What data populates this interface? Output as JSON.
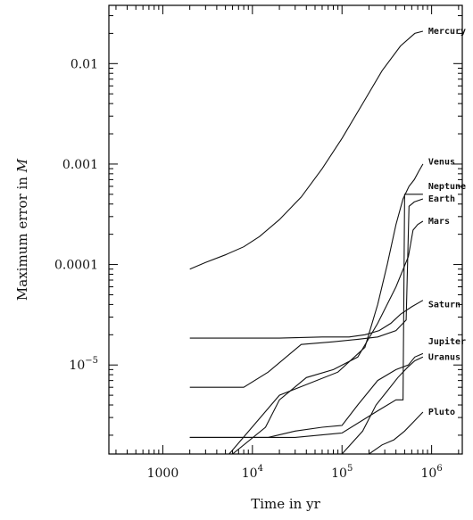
{
  "chart_data": {
    "type": "line",
    "xlabel_prefix": "Time in yr",
    "ylabel_prefix": "Maximum error in ",
    "ylabel_var": "M",
    "xscale": "log",
    "yscale": "log",
    "xlim": [
      250,
      2200000
    ],
    "ylim": [
      1.3e-06,
      0.038
    ],
    "grid": false,
    "x_ticks": [
      {
        "value": 1000,
        "label": "1000"
      },
      {
        "value": 10000,
        "mant": "10",
        "exp": "4"
      },
      {
        "value": 100000,
        "mant": "10",
        "exp": "5"
      },
      {
        "value": 1000000,
        "mant": "10",
        "exp": "6"
      }
    ],
    "y_ticks": [
      {
        "value": 0.01,
        "label": "0.01"
      },
      {
        "value": 0.001,
        "label": "0.001"
      },
      {
        "value": 0.0001,
        "label": "0.0001"
      },
      {
        "value": 1e-05,
        "mant": "10",
        "exp": "−5"
      }
    ],
    "series": [
      {
        "name": "Mercury",
        "label_y": 0.021,
        "x": [
          2000,
          3000,
          5000,
          8000,
          12000,
          20000,
          35000,
          60000,
          100000,
          170000,
          280000,
          450000,
          650000,
          800000
        ],
        "y": [
          9e-05,
          0.000105,
          0.000125,
          0.00015,
          0.00019,
          0.00028,
          0.00047,
          0.0009,
          0.0018,
          0.004,
          0.0085,
          0.015,
          0.02,
          0.021
        ]
      },
      {
        "name": "Venus",
        "label_y": 0.00105,
        "x": [
          5500,
          20000,
          90000,
          180000,
          250000,
          320000,
          400000,
          480000,
          560000,
          640000,
          720000,
          800000
        ],
        "y": [
          1.3e-06,
          5e-06,
          8.5e-06,
          1.5e-05,
          4e-05,
          0.0001,
          0.00025,
          0.00045,
          0.0006,
          0.0007,
          0.00085,
          0.001
        ]
      },
      {
        "name": "Neptune",
        "label_y": 0.0006,
        "x": [
          2000,
          8000,
          15000,
          30000,
          100000,
          250000,
          400000,
          480000,
          500000,
          800000
        ],
        "y": [
          1.9e-06,
          1.9e-06,
          1.9e-06,
          1.9e-06,
          2.1e-06,
          3.5e-06,
          4.5e-06,
          4.5e-06,
          0.0005,
          0.0005
        ]
      },
      {
        "name": "Earth",
        "label_y": 0.00045,
        "x": [
          2000,
          8000,
          15000,
          35000,
          80000,
          150000,
          250000,
          400000,
          520000,
          560000,
          640000,
          800000
        ],
        "y": [
          6e-06,
          6e-06,
          8.5e-06,
          1.6e-05,
          1.7e-05,
          1.8e-05,
          1.9e-05,
          2.2e-05,
          2.8e-05,
          0.00038,
          0.00042,
          0.00045
        ]
      },
      {
        "name": "Mars",
        "label_y": 0.00027,
        "x": [
          6000,
          14000,
          20000,
          40000,
          80000,
          150000,
          250000,
          400000,
          550000,
          620000,
          700000,
          800000
        ],
        "y": [
          1.3e-06,
          2.4e-06,
          4.5e-06,
          7.5e-06,
          9e-06,
          1.2e-05,
          2.6e-05,
          6e-05,
          0.00012,
          0.00022,
          0.00025,
          0.00027
        ]
      },
      {
        "name": "Saturn",
        "label_y": 4e-05,
        "x": [
          2000,
          20000,
          60000,
          120000,
          180000,
          260000,
          350000,
          450000,
          600000,
          800000
        ],
        "y": [
          1.85e-05,
          1.85e-05,
          1.9e-05,
          1.9e-05,
          2e-05,
          2.2e-05,
          2.6e-05,
          3.2e-05,
          3.8e-05,
          4.4e-05
        ]
      },
      {
        "name": "Jupiter",
        "label_y": 1.7e-05,
        "x": [
          2000,
          15000,
          30000,
          60000,
          100000,
          150000,
          250000,
          400000,
          550000,
          650000,
          800000
        ],
        "y": [
          1.9e-06,
          1.9e-06,
          2.2e-06,
          2.4e-06,
          2.5e-06,
          4e-06,
          7e-06,
          9e-06,
          1e-05,
          1.2e-05,
          1.3e-05
        ]
      },
      {
        "name": "Uranus",
        "label_y": 1.2e-05,
        "x": [
          100000,
          170000,
          240000,
          320000,
          420000,
          540000,
          650000,
          800000
        ],
        "y": [
          1.3e-06,
          2.2e-06,
          4e-06,
          5.5e-06,
          7.5e-06,
          9.5e-06,
          1.1e-05,
          1.2e-05
        ]
      },
      {
        "name": "Pluto",
        "label_y": 3.4e-06,
        "x": [
          200000,
          280000,
          380000,
          500000,
          650000,
          800000
        ],
        "y": [
          1.3e-06,
          1.6e-06,
          1.8e-06,
          2.2e-06,
          2.8e-06,
          3.4e-06
        ]
      }
    ]
  }
}
